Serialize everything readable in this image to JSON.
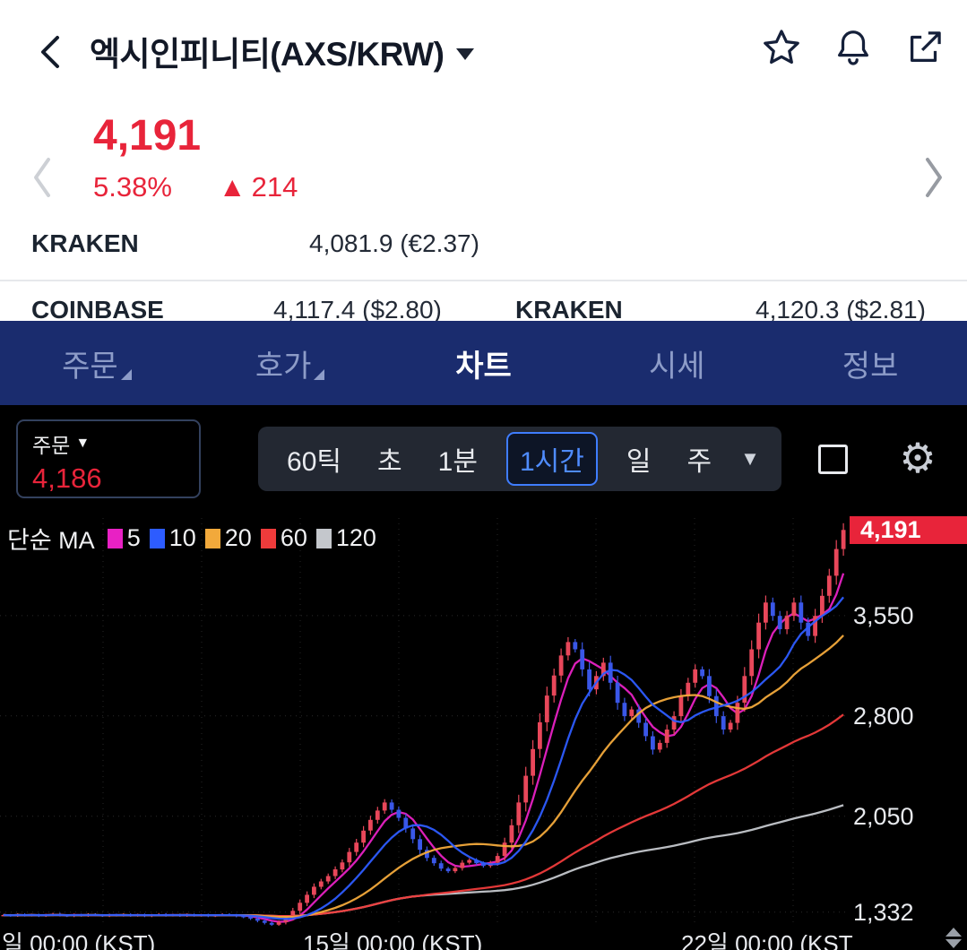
{
  "colors": {
    "up_red": "#e8475a",
    "down_blue": "#3a57e8",
    "price_red": "#e8243a",
    "tab_navy": "#1a2c6e",
    "accent_blue": "#3f7dff"
  },
  "header": {
    "title": "엑시인피니티(AXS/KRW)",
    "icons": [
      "back-chevron",
      "star",
      "bell",
      "share"
    ]
  },
  "price_summary": {
    "price": "4,191",
    "change_percent": "5.38%",
    "change_arrow": "▲",
    "change_amount": "214"
  },
  "exchange_quotes": {
    "row1": [
      {
        "exchange": "KRAKEN",
        "value": "4,081.9 (€2.37)"
      }
    ],
    "row2": [
      {
        "exchange": "COINBASE",
        "value": "4,117.4 ($2.80)"
      },
      {
        "exchange": "KRAKEN",
        "value": "4,120.3 ($2.81)"
      }
    ]
  },
  "tabs": {
    "items": [
      {
        "label": "주문",
        "active": false
      },
      {
        "label": "호가",
        "active": false
      },
      {
        "label": "차트",
        "active": true
      },
      {
        "label": "시세",
        "active": false
      },
      {
        "label": "정보",
        "active": false
      }
    ]
  },
  "toolbar": {
    "order_label": "주문",
    "order_caret": "▼",
    "order_price": "4,186",
    "timeframes": [
      "60틱",
      "초",
      "1분",
      "1시간",
      "일",
      "주"
    ],
    "selected_timeframe": "1시간",
    "dropdown_caret": "▼"
  },
  "chart": {
    "ma_label": "단순 MA",
    "current_price_label": "4,191"
  },
  "chart_data": {
    "type": "candlestick",
    "title": "AXS/KRW 1시간 차트",
    "interval": "1시간",
    "current_price": 4191,
    "y_domain": [
      1250,
      4280
    ],
    "y_ticks": [
      3550,
      2800,
      2050,
      1332
    ],
    "x_labels": [
      "일 00:00 (KST)",
      "15일 00:00 (KST)",
      "22일 00:00 (KST"
    ],
    "ma_series": [
      {
        "name": "5",
        "window": 5,
        "color": "#e821c4"
      },
      {
        "name": "10",
        "window": 10,
        "color": "#2d5cff"
      },
      {
        "name": "20",
        "window": 20,
        "color": "#f2a93b"
      },
      {
        "name": "60",
        "window": 60,
        "color": "#ef3b3b"
      },
      {
        "name": "120",
        "window": 120,
        "color": "#c4c7cc"
      }
    ],
    "closes": [
      1310,
      1306,
      1314,
      1308,
      1312,
      1305,
      1311,
      1318,
      1309,
      1304,
      1312,
      1307,
      1315,
      1310,
      1305,
      1312,
      1308,
      1314,
      1307,
      1312,
      1304,
      1310,
      1316,
      1308,
      1312,
      1306,
      1313,
      1307,
      1311,
      1304,
      1309,
      1315,
      1310,
      1303,
      1296,
      1284,
      1268,
      1252,
      1238,
      1258,
      1292,
      1342,
      1402,
      1462,
      1522,
      1562,
      1602,
      1652,
      1704,
      1782,
      1852,
      1942,
      2022,
      2092,
      2152,
      2098,
      2038,
      1958,
      1878,
      1798,
      1738,
      1698,
      1658,
      1638,
      1662,
      1702,
      1722,
      1698,
      1678,
      1702,
      1752,
      1852,
      1982,
      2152,
      2352,
      2552,
      2752,
      2952,
      3102,
      3252,
      3352,
      3298,
      3148,
      2998,
      3098,
      3198,
      3048,
      2898,
      2798,
      2848,
      2748,
      2648,
      2548,
      2598,
      2698,
      2798,
      2948,
      3048,
      3148,
      3098,
      2948,
      2798,
      2698,
      2748,
      2898,
      3098,
      3298,
      3498,
      3648,
      3548,
      3448,
      3548,
      3648,
      3498,
      3398,
      3548,
      3698,
      3848,
      4048,
      4191
    ]
  }
}
